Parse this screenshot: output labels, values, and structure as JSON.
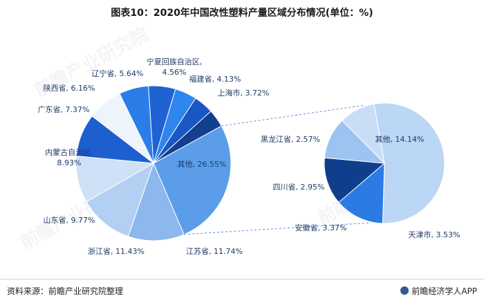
{
  "title": "图表10：2020年中国改性塑料产量区域分布情况(单位：%)",
  "footer": {
    "source": "资料来源：前瞻产业研究院整理",
    "brand": "前瞻经济学人APP"
  },
  "watermark": "前瞻产业研究院",
  "colors": {
    "dark_blue": "#0f3f8c",
    "mid_blue": "#1f6fde",
    "bright_blue": "#2c7be5",
    "light_blue": "#9dc3f1",
    "pale_blue": "#c4dcf6",
    "very_pale": "#e9f1fb",
    "sky": "#5aa0ec"
  },
  "chart_data": [
    {
      "type": "pie",
      "title": "",
      "slices": [
        {
          "label": "其他, 26.55%",
          "name": "其他",
          "value": 26.55,
          "color": "#5b9de8"
        },
        {
          "label": "江苏省, 11.74%",
          "name": "江苏省",
          "value": 11.74,
          "color": "#8cb8ee"
        },
        {
          "label": "浙江省, 11.43%",
          "name": "浙江省",
          "value": 11.43,
          "color": "#b3d0f3"
        },
        {
          "label": "山东省, 9.77%",
          "name": "山东省",
          "value": 9.77,
          "color": "#cfe1f7"
        },
        {
          "label": "内蒙古自治区, 8.93%",
          "name": "内蒙古自治区",
          "value": 8.93,
          "color": "#1e5fcf"
        },
        {
          "label": "广东省, 7.37%",
          "name": "广东省",
          "value": 7.37,
          "color": "#eef4fc"
        },
        {
          "label": "陕西省, 6.16%",
          "name": "陕西省",
          "value": 6.16,
          "color": "#2b7de8"
        },
        {
          "label": "辽宁省, 5.64%",
          "name": "辽宁省",
          "value": 5.64,
          "color": "#1f63d2"
        },
        {
          "label": "宁夏回族自治区, 4.56%",
          "name": "宁夏回族自治区",
          "value": 4.56,
          "color": "#2f86ee"
        },
        {
          "label": "福建省, 4.13%",
          "name": "福建省",
          "value": 4.13,
          "color": "#1a56c4"
        },
        {
          "label": "上海市, 3.72%",
          "name": "上海市",
          "value": 3.72,
          "color": "#123f8e"
        }
      ]
    },
    {
      "type": "pie",
      "title": "",
      "slices": [
        {
          "label": "其他, 14.14%",
          "name": "其他",
          "value": 14.14,
          "color": "#bcd6f5"
        },
        {
          "label": "天津市, 3.53%",
          "name": "天津市",
          "value": 3.53,
          "color": "#2c7be5"
        },
        {
          "label": "安徽省, 3.37%",
          "name": "安徽省",
          "value": 3.37,
          "color": "#0f3f8c"
        },
        {
          "label": "四川省, 2.95%",
          "name": "四川省",
          "value": 2.95,
          "color": "#9dc3f1"
        },
        {
          "label": "黑龙江省, 2.57%",
          "name": "黑龙江省",
          "value": 2.57,
          "color": "#c9ddf6"
        }
      ]
    }
  ]
}
